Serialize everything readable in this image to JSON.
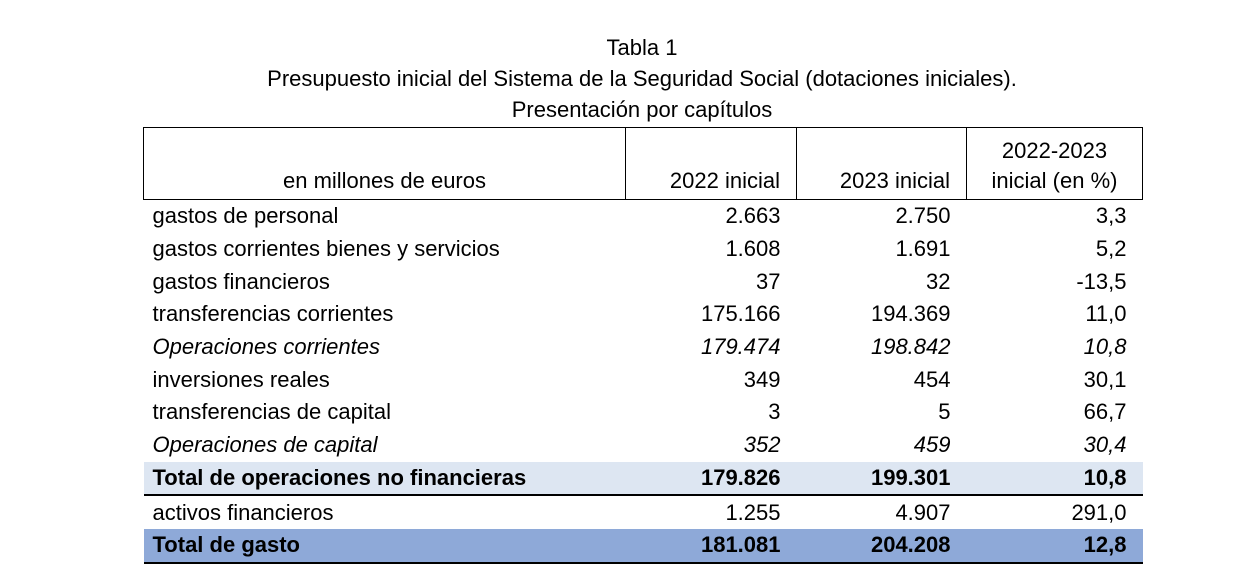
{
  "title": {
    "line1": "Tabla 1",
    "line2": "Presupuesto inicial del Sistema de la Seguridad Social (dotaciones iniciales).",
    "line3": "Presentación por capítulos"
  },
  "table": {
    "headers": {
      "label": "en millones de euros",
      "col2022": "2022 inicial",
      "col2023": "2023 inicial",
      "colpct_line1": "2022-2023",
      "colpct_line2": "inicial (en %)"
    },
    "rows": [
      {
        "label": "gastos de personal",
        "v2022": "2.663",
        "v2023": "2.750",
        "pct": "3,3"
      },
      {
        "label": "gastos corrientes bienes y servicios",
        "v2022": "1.608",
        "v2023": "1.691",
        "pct": "5,2"
      },
      {
        "label": "gastos financieros",
        "v2022": "37",
        "v2023": "32",
        "pct": "-13,5"
      },
      {
        "label": "transferencias corrientes",
        "v2022": "175.166",
        "v2023": "194.369",
        "pct": "11,0"
      },
      {
        "label": "Operaciones corrientes",
        "v2022": "179.474",
        "v2023": "198.842",
        "pct": "10,8"
      },
      {
        "label": "inversiones reales",
        "v2022": "349",
        "v2023": "454",
        "pct": "30,1"
      },
      {
        "label": "transferencias de capital",
        "v2022": "3",
        "v2023": "5",
        "pct": "66,7"
      },
      {
        "label": "Operaciones de capital",
        "v2022": "352",
        "v2023": "459",
        "pct": "30,4"
      },
      {
        "label": "Total de operaciones no financieras",
        "v2022": "179.826",
        "v2023": "199.301",
        "pct": "10,8"
      },
      {
        "label": "activos financieros",
        "v2022": "1.255",
        "v2023": "4.907",
        "pct": "291,0"
      },
      {
        "label": "Total de gasto",
        "v2022": "181.081",
        "v2023": "204.208",
        "pct": "12,8"
      }
    ]
  },
  "colors": {
    "subtotal_bg": "#dde6f2",
    "total_bg": "#8ea9d8"
  }
}
